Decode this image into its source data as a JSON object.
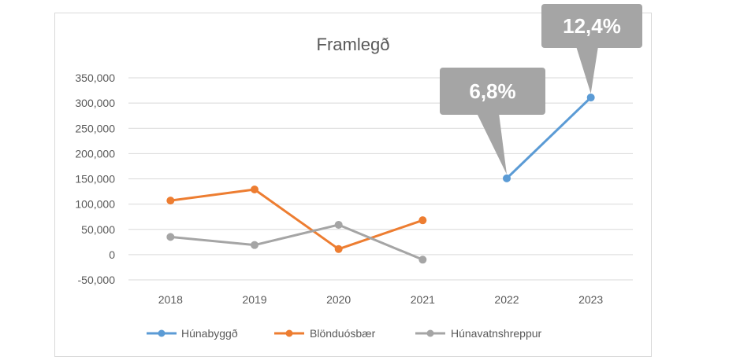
{
  "chart_data": {
    "type": "line",
    "title": "Framlegð",
    "xlabel": "",
    "ylabel": "",
    "categories": [
      "2018",
      "2019",
      "2020",
      "2021",
      "2022",
      "2023"
    ],
    "ylim": [
      -50000,
      350000
    ],
    "yticks": [
      350000,
      300000,
      250000,
      200000,
      150000,
      100000,
      50000,
      0,
      -50000
    ],
    "ytick_labels": [
      "350,000",
      "300,000",
      "250,000",
      "200,000",
      "150,000",
      "100,000",
      "50,000",
      "0",
      "-50,000"
    ],
    "grid": "horizontal",
    "legend_position": "bottom",
    "series": [
      {
        "name": "Húnabyggð",
        "color": "#5b9bd5",
        "values": [
          null,
          null,
          null,
          null,
          151000,
          311000
        ]
      },
      {
        "name": "Blönduósbær",
        "color": "#ed7d31",
        "values": [
          107000,
          129000,
          11000,
          68000,
          null,
          null
        ]
      },
      {
        "name": "Húnavatnshreppur",
        "color": "#a5a5a5",
        "values": [
          35000,
          19000,
          59000,
          -10000,
          null,
          null
        ]
      }
    ],
    "callouts": [
      {
        "text": "6,8%",
        "series": "Húnabyggð",
        "category": "2022"
      },
      {
        "text": "12,4%",
        "series": "Húnabyggð",
        "category": "2023"
      }
    ],
    "callout_color": "#a5a5a5"
  }
}
